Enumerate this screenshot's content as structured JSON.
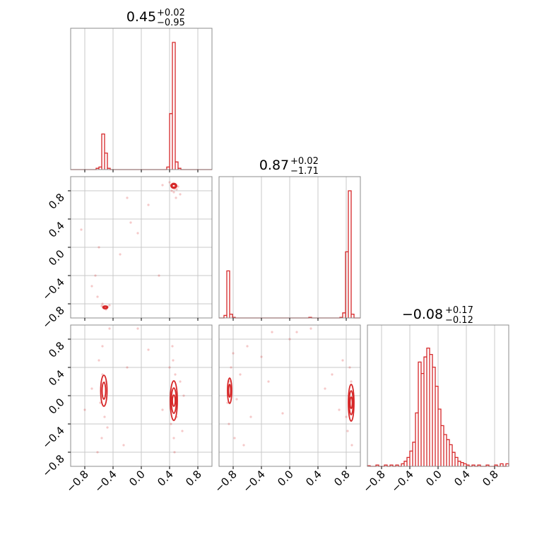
{
  "chart_data": {
    "type": "corner",
    "color": "#d62728",
    "grid": true,
    "axis_range": [
      -1,
      1
    ],
    "ticks": [
      -0.8,
      -0.4,
      0.0,
      0.4,
      0.8
    ],
    "tick_labels": [
      "−0.8",
      "−0.4",
      "0.0",
      "0.4",
      "0.8"
    ],
    "parameters": [
      {
        "title_value": "0.45",
        "title_plus": "+0.02",
        "title_minus": "−0.95"
      },
      {
        "title_value": "0.87",
        "title_plus": "+0.02",
        "title_minus": "−1.71"
      },
      {
        "title_value": "−0.08",
        "title_plus": "+0.17",
        "title_minus": "−0.12"
      }
    ],
    "histograms": [
      {
        "param": 0,
        "bin_width": 0.04,
        "bins": [
          {
            "x": -0.62,
            "h": 0.01
          },
          {
            "x": -0.58,
            "h": 0.02
          },
          {
            "x": -0.54,
            "h": 0.28
          },
          {
            "x": -0.5,
            "h": 0.13
          },
          {
            "x": -0.46,
            "h": 0.01
          },
          {
            "x": 0.38,
            "h": 0.02
          },
          {
            "x": 0.42,
            "h": 0.44
          },
          {
            "x": 0.46,
            "h": 1.0
          },
          {
            "x": 0.5,
            "h": 0.06
          },
          {
            "x": 0.54,
            "h": 0.01
          }
        ]
      },
      {
        "param": 1,
        "bin_width": 0.04,
        "bins": [
          {
            "x": -0.91,
            "h": 0.02
          },
          {
            "x": -0.87,
            "h": 0.37
          },
          {
            "x": -0.83,
            "h": 0.03
          },
          {
            "x": -0.79,
            "h": 0.005
          },
          {
            "x": 0.29,
            "h": 0.005
          },
          {
            "x": 0.73,
            "h": 0.005
          },
          {
            "x": 0.77,
            "h": 0.04
          },
          {
            "x": 0.81,
            "h": 0.52
          },
          {
            "x": 0.85,
            "h": 1.0
          },
          {
            "x": 0.89,
            "h": 0.03
          }
        ]
      },
      {
        "param": 2,
        "bin_width": 0.04,
        "bins": [
          {
            "x": -0.98,
            "h": 0.005
          },
          {
            "x": -0.86,
            "h": 0.01
          },
          {
            "x": -0.74,
            "h": 0.01
          },
          {
            "x": -0.66,
            "h": 0.01
          },
          {
            "x": -0.58,
            "h": 0.01
          },
          {
            "x": -0.5,
            "h": 0.02
          },
          {
            "x": -0.46,
            "h": 0.04
          },
          {
            "x": -0.42,
            "h": 0.07
          },
          {
            "x": -0.38,
            "h": 0.12
          },
          {
            "x": -0.34,
            "h": 0.19
          },
          {
            "x": -0.3,
            "h": 0.42
          },
          {
            "x": -0.26,
            "h": 0.82
          },
          {
            "x": -0.22,
            "h": 0.73
          },
          {
            "x": -0.18,
            "h": 0.86
          },
          {
            "x": -0.14,
            "h": 0.93
          },
          {
            "x": -0.1,
            "h": 0.88
          },
          {
            "x": -0.06,
            "h": 0.78
          },
          {
            "x": -0.02,
            "h": 0.63
          },
          {
            "x": 0.02,
            "h": 0.45
          },
          {
            "x": 0.06,
            "h": 0.32
          },
          {
            "x": 0.1,
            "h": 0.25
          },
          {
            "x": 0.14,
            "h": 0.21
          },
          {
            "x": 0.18,
            "h": 0.17
          },
          {
            "x": 0.22,
            "h": 0.11
          },
          {
            "x": 0.26,
            "h": 0.07
          },
          {
            "x": 0.3,
            "h": 0.04
          },
          {
            "x": 0.34,
            "h": 0.03
          },
          {
            "x": 0.38,
            "h": 0.02
          },
          {
            "x": 0.42,
            "h": 0.01
          },
          {
            "x": 0.5,
            "h": 0.01
          },
          {
            "x": 0.58,
            "h": 0.01
          },
          {
            "x": 0.7,
            "h": 0.01
          },
          {
            "x": 0.82,
            "h": 0.01
          },
          {
            "x": 0.9,
            "h": 0.02
          },
          {
            "x": 0.98,
            "h": 0.02
          }
        ]
      }
    ],
    "scatter_panels": [
      {
        "x_param": 0,
        "y_param": 1,
        "points": [
          [
            0.45,
            0.9
          ],
          [
            0.42,
            0.88
          ],
          [
            0.48,
            0.87
          ],
          [
            0.44,
            0.85
          ],
          [
            0.47,
            0.83
          ],
          [
            0.43,
            0.8
          ],
          [
            0.5,
            0.82
          ],
          [
            0.46,
            0.78
          ],
          [
            0.52,
            0.86
          ],
          [
            0.4,
            0.92
          ],
          [
            0.55,
            0.75
          ],
          [
            0.49,
            0.7
          ],
          [
            0.3,
            0.88
          ],
          [
            -0.05,
            0.2
          ],
          [
            -0.2,
            0.7
          ],
          [
            -0.3,
            -0.1
          ],
          [
            -0.6,
            0.0
          ],
          [
            -0.65,
            -0.4
          ],
          [
            -0.7,
            -0.55
          ],
          [
            -0.62,
            -0.7
          ],
          [
            -0.55,
            -0.8
          ],
          [
            -0.52,
            -0.86
          ],
          [
            -0.48,
            -0.84
          ],
          [
            -0.5,
            -0.88
          ],
          [
            -0.56,
            -0.83
          ],
          [
            -0.45,
            -0.82
          ],
          [
            -0.85,
            0.25
          ],
          [
            0.25,
            -0.4
          ],
          [
            -0.15,
            0.35
          ],
          [
            0.1,
            0.6
          ]
        ],
        "contours": [
          {
            "cx": 0.46,
            "cy": 0.87,
            "rx": 0.04,
            "ry": 0.035
          },
          {
            "cx": 0.46,
            "cy": 0.87,
            "rx": 0.025,
            "ry": 0.02
          },
          {
            "cx": -0.51,
            "cy": -0.85,
            "rx": 0.035,
            "ry": 0.02
          },
          {
            "cx": -0.51,
            "cy": -0.85,
            "rx": 0.02,
            "ry": 0.012
          }
        ]
      },
      {
        "x_param": 0,
        "y_param": 2,
        "points": [
          [
            -0.55,
            0.3
          ],
          [
            -0.5,
            0.2
          ],
          [
            -0.58,
            -0.1
          ],
          [
            -0.52,
            -0.3
          ],
          [
            -0.6,
            0.5
          ],
          [
            -0.48,
            -0.45
          ],
          [
            -0.55,
            0.7
          ],
          [
            -0.56,
            -0.6
          ],
          [
            -0.62,
            -0.8
          ],
          [
            -0.7,
            0.1
          ],
          [
            -0.45,
            0.95
          ],
          [
            0.45,
            0.5
          ],
          [
            0.48,
            0.3
          ],
          [
            0.42,
            -0.4
          ],
          [
            0.46,
            -0.6
          ],
          [
            0.5,
            -0.3
          ],
          [
            0.44,
            0.7
          ],
          [
            0.47,
            -0.8
          ],
          [
            0.55,
            0.2
          ],
          [
            0.4,
            0.4
          ],
          [
            0.58,
            -0.5
          ],
          [
            0.3,
            -0.2
          ],
          [
            -0.2,
            0.4
          ],
          [
            -0.8,
            -0.2
          ],
          [
            -0.25,
            -0.7
          ],
          [
            0.1,
            0.65
          ],
          [
            -0.05,
            0.95
          ],
          [
            0.6,
            0.0
          ]
        ],
        "contours": [
          {
            "cx": -0.53,
            "cy": 0.07,
            "rx": 0.045,
            "ry": 0.22
          },
          {
            "cx": -0.53,
            "cy": 0.07,
            "rx": 0.025,
            "ry": 0.12
          },
          {
            "cx": 0.46,
            "cy": -0.07,
            "rx": 0.05,
            "ry": 0.28
          },
          {
            "cx": 0.46,
            "cy": -0.07,
            "rx": 0.035,
            "ry": 0.18
          },
          {
            "cx": 0.46,
            "cy": -0.07,
            "rx": 0.02,
            "ry": 0.08
          }
        ]
      },
      {
        "x_param": 1,
        "y_param": 2,
        "points": [
          [
            -0.85,
            0.2
          ],
          [
            -0.88,
            -0.1
          ],
          [
            -0.83,
            0.4
          ],
          [
            -0.86,
            -0.4
          ],
          [
            -0.8,
            0.6
          ],
          [
            -0.78,
            -0.6
          ],
          [
            -0.7,
            0.3
          ],
          [
            -0.6,
            0.7
          ],
          [
            -0.55,
            -0.3
          ],
          [
            -0.4,
            0.55
          ],
          [
            -0.25,
            0.9
          ],
          [
            0.0,
            0.8
          ],
          [
            -0.1,
            -0.25
          ],
          [
            0.3,
            0.95
          ],
          [
            0.1,
            0.9
          ],
          [
            -0.3,
            0.2
          ],
          [
            0.85,
            0.4
          ],
          [
            0.82,
            -0.5
          ],
          [
            0.87,
            0.2
          ],
          [
            0.8,
            -0.3
          ],
          [
            0.88,
            -0.7
          ],
          [
            0.75,
            0.5
          ],
          [
            0.7,
            -0.2
          ],
          [
            0.6,
            0.3
          ],
          [
            0.5,
            0.1
          ],
          [
            -0.65,
            -0.7
          ],
          [
            -0.75,
            -0.05
          ]
        ],
        "contours": [
          {
            "cx": -0.85,
            "cy": 0.07,
            "rx": 0.03,
            "ry": 0.18
          },
          {
            "cx": -0.85,
            "cy": 0.07,
            "rx": 0.015,
            "ry": 0.09
          },
          {
            "cx": 0.87,
            "cy": -0.1,
            "rx": 0.04,
            "ry": 0.26
          },
          {
            "cx": 0.87,
            "cy": -0.1,
            "rx": 0.028,
            "ry": 0.17
          },
          {
            "cx": 0.87,
            "cy": -0.1,
            "rx": 0.016,
            "ry": 0.08
          }
        ]
      }
    ]
  }
}
